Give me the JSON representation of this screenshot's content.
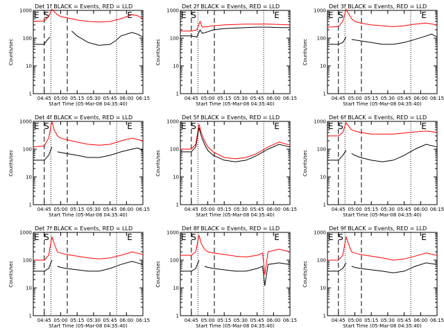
{
  "colors": {
    "events": "#000000",
    "lld": "#ff0000",
    "background": "#ffffff"
  },
  "chart_data": {
    "type": "line",
    "layout": "3x3 grid of panels",
    "ylabel": "Counts/sec",
    "xlabel": "Start Time (05-Mar-08 04:35:40)",
    "x_tick_labels": [
      "04:45",
      "05:00",
      "05:15",
      "05:30",
      "05:45",
      "06:00",
      "06:15"
    ],
    "x_range_minutes_after_0435": [
      0,
      100
    ],
    "ylog": true,
    "ylim": [
      1,
      1000
    ],
    "y_tick_labels": [
      "1",
      "10",
      "100",
      "1000"
    ],
    "event_markers": [
      {
        "label": "E",
        "time": "04:35"
      },
      {
        "label": "S",
        "time": "04:44"
      },
      {
        "label": "E",
        "time": "06:00"
      }
    ],
    "vlines": {
      "dashed": [
        "04:45",
        "05:06"
      ],
      "dotted": [
        "04:51",
        "05:51"
      ]
    },
    "panels": [
      {
        "title": "Det 1f BLACK = Events, RED = LLD",
        "series": [
          {
            "name": "Events",
            "color": "#000000",
            "x": [
              0,
              10,
              11,
              15,
              16,
              18,
              22,
              25,
              28,
              30,
              35,
              40,
              50,
              60,
              70,
              75,
              80,
              90,
              95,
              100
            ],
            "y": [
              60,
              60,
              70,
              110,
              null,
              null,
              null,
              null,
              null,
              null,
              180,
              120,
              70,
              55,
              60,
              80,
              120,
              160,
              140,
              110
            ]
          },
          {
            "name": "LLD",
            "color": "#ff0000",
            "x": [
              0,
              10,
              14,
              17,
              19,
              22,
              25,
              30,
              40,
              50,
              60,
              70,
              80,
              90,
              95,
              100
            ],
            "y": [
              400,
              420,
              600,
              1100,
              900,
              700,
              600,
              550,
              450,
              400,
              380,
              400,
              500,
              700,
              650,
              500
            ]
          }
        ]
      },
      {
        "title": "Det 2f BLACK = Events, RED = LLD",
        "series": [
          {
            "name": "Events",
            "color": "#000000",
            "x": [
              0,
              10,
              15,
              18,
              20,
              25,
              30,
              40,
              50,
              60,
              70,
              80,
              90,
              100
            ],
            "y": [
              120,
              120,
              110,
              200,
              150,
              170,
              200,
              220,
              230,
              240,
              250,
              250,
              240,
              240
            ]
          },
          {
            "name": "LLD",
            "color": "#ff0000",
            "x": [
              0,
              10,
              15,
              18,
              20,
              25,
              30,
              40,
              50,
              60,
              70,
              80,
              90,
              100
            ],
            "y": [
              180,
              180,
              200,
              400,
              250,
              260,
              280,
              300,
              310,
              320,
              320,
              320,
              310,
              300
            ]
          }
        ]
      },
      {
        "title": "Det 3f BLACK = Events, RED = LLD",
        "series": [
          {
            "name": "Events",
            "color": "#000000",
            "x": [
              0,
              10,
              14,
              17,
              19,
              22,
              30,
              40,
              50,
              60,
              70,
              80,
              90,
              95,
              100
            ],
            "y": [
              60,
              60,
              70,
              110,
              null,
              90,
              80,
              70,
              60,
              60,
              70,
              90,
              120,
              140,
              110
            ]
          },
          {
            "name": "LLD",
            "color": "#ff0000",
            "x": [
              0,
              10,
              14,
              17,
              19,
              22,
              25,
              30,
              40,
              50,
              60,
              70,
              80,
              90,
              100
            ],
            "y": [
              250,
              260,
              400,
              1100,
              800,
              500,
              400,
              350,
              300,
              280,
              260,
              280,
              320,
              350,
              300
            ]
          }
        ]
      },
      {
        "title": "Det 4f BLACK = Events, RED = LLD",
        "series": [
          {
            "name": "Events",
            "color": "#000000",
            "x": [
              0,
              10,
              14,
              17,
              19,
              22,
              30,
              40,
              50,
              60,
              70,
              80,
              90,
              95,
              100
            ],
            "y": [
              40,
              40,
              60,
              120,
              null,
              80,
              70,
              60,
              50,
              50,
              60,
              80,
              100,
              110,
              90
            ]
          },
          {
            "name": "LLD",
            "color": "#ff0000",
            "x": [
              0,
              10,
              14,
              17,
              19,
              22,
              25,
              30,
              40,
              50,
              60,
              70,
              80,
              90,
              100
            ],
            "y": [
              120,
              130,
              250,
              1000,
              500,
              300,
              250,
              220,
              180,
              150,
              140,
              150,
              200,
              250,
              200
            ]
          }
        ]
      },
      {
        "title": "Det 5f BLACK = Events, RED = LLD",
        "series": [
          {
            "name": "Events",
            "color": "#000000",
            "x": [
              0,
              10,
              14,
              17,
              19,
              22,
              25,
              30,
              40,
              50,
              60,
              70,
              80,
              90,
              100
            ],
            "y": [
              80,
              80,
              120,
              600,
              300,
              150,
              90,
              60,
              40,
              35,
              40,
              60,
              100,
              150,
              120
            ]
          },
          {
            "name": "LLD",
            "color": "#ff0000",
            "x": [
              0,
              10,
              14,
              17,
              19,
              22,
              25,
              30,
              40,
              50,
              60,
              70,
              80,
              90,
              100
            ],
            "y": [
              100,
              100,
              150,
              800,
              400,
              200,
              120,
              80,
              50,
              45,
              50,
              70,
              120,
              180,
              140
            ]
          }
        ]
      },
      {
        "title": "Det 6f BLACK = Events, RED = LLD",
        "series": [
          {
            "name": "Events",
            "color": "#000000",
            "x": [
              0,
              10,
              14,
              17,
              19,
              22,
              25,
              30,
              40,
              50,
              60,
              70,
              80,
              90,
              100
            ],
            "y": [
              40,
              40,
              60,
              90,
              null,
              70,
              60,
              50,
              40,
              35,
              40,
              60,
              100,
              150,
              120
            ]
          },
          {
            "name": "LLD",
            "color": "#ff0000",
            "x": [
              0,
              10,
              14,
              17,
              19,
              22,
              25,
              30,
              40,
              50,
              60,
              70,
              80,
              90,
              100
            ],
            "y": [
              300,
              300,
              400,
              900,
              700,
              500,
              450,
              400,
              350,
              350,
              350,
              380,
              420,
              450,
              400
            ]
          }
        ]
      },
      {
        "title": "Det 7f BLACK = Events, RED = LLD",
        "series": [
          {
            "name": "Events",
            "color": "#000000",
            "x": [
              0,
              10,
              14,
              17,
              19,
              22,
              25,
              30,
              40,
              50,
              60,
              70,
              80,
              90,
              100
            ],
            "y": [
              40,
              40,
              50,
              100,
              null,
              60,
              55,
              50,
              45,
              40,
              40,
              50,
              70,
              90,
              70
            ]
          },
          {
            "name": "LLD",
            "color": "#ff0000",
            "x": [
              0,
              10,
              14,
              17,
              19,
              22,
              25,
              30,
              40,
              50,
              60,
              70,
              80,
              90,
              100
            ],
            "y": [
              100,
              100,
              150,
              700,
              400,
              200,
              180,
              160,
              140,
              120,
              110,
              120,
              150,
              200,
              160
            ]
          }
        ]
      },
      {
        "title": "Det 8f BLACK = Events, RED = LLD",
        "series": [
          {
            "name": "Events",
            "color": "#000000",
            "x": [
              0,
              10,
              14,
              17,
              19,
              22,
              25,
              30,
              40,
              50,
              60,
              70,
              75,
              77,
              80,
              90,
              100
            ],
            "y": [
              40,
              40,
              50,
              100,
              null,
              60,
              55,
              50,
              45,
              40,
              40,
              50,
              60,
              12,
              70,
              80,
              70
            ]
          },
          {
            "name": "LLD",
            "color": "#ff0000",
            "x": [
              0,
              10,
              14,
              17,
              19,
              22,
              25,
              30,
              40,
              50,
              60,
              70,
              75,
              77,
              80,
              90,
              100
            ],
            "y": [
              150,
              150,
              200,
              800,
              400,
              250,
              200,
              180,
              160,
              140,
              130,
              150,
              180,
              30,
              200,
              250,
              200
            ]
          }
        ]
      },
      {
        "title": "Det 9f BLACK = Events, RED = LLD",
        "series": [
          {
            "name": "Events",
            "color": "#000000",
            "x": [
              0,
              10,
              14,
              17,
              19,
              22,
              25,
              30,
              40,
              50,
              60,
              70,
              80,
              90,
              100
            ],
            "y": [
              40,
              40,
              50,
              80,
              null,
              60,
              55,
              50,
              45,
              40,
              35,
              40,
              60,
              80,
              70
            ]
          },
          {
            "name": "LLD",
            "color": "#ff0000",
            "x": [
              0,
              10,
              14,
              17,
              19,
              22,
              25,
              30,
              40,
              50,
              60,
              70,
              80,
              90,
              100
            ],
            "y": [
              100,
              100,
              150,
              700,
              400,
              200,
              180,
              160,
              140,
              120,
              100,
              110,
              140,
              180,
              150
            ]
          }
        ]
      }
    ]
  }
}
